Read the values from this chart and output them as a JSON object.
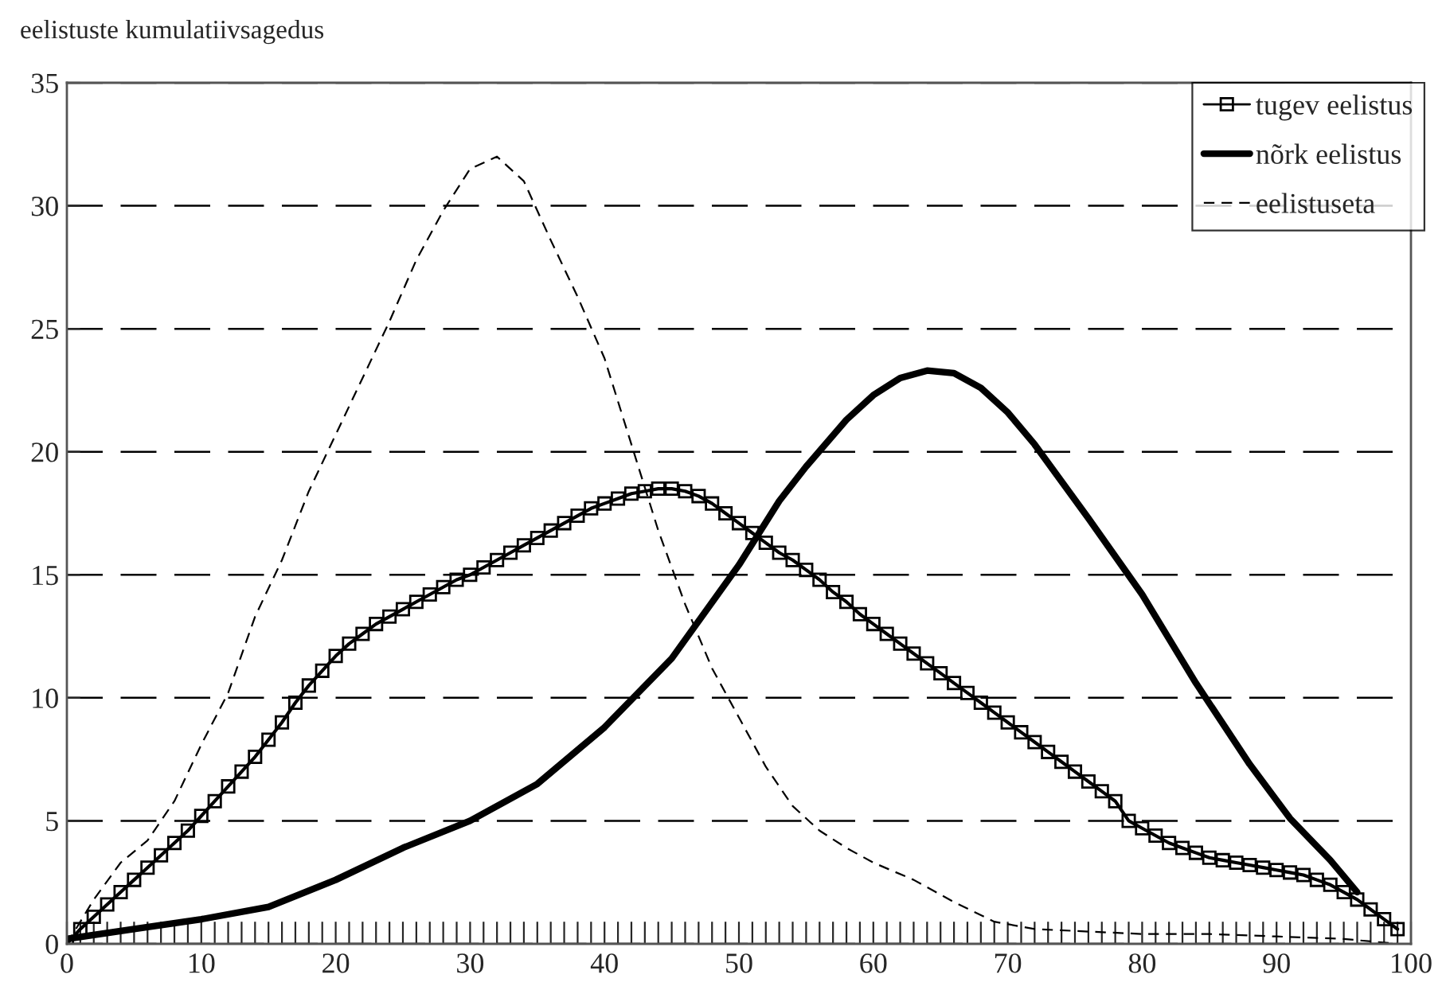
{
  "chart_data": {
    "type": "line",
    "ylabel": "eelistuste kumulatiivsagedus",
    "xlim": [
      0,
      100
    ],
    "ylim": [
      0,
      35
    ],
    "yticks": [
      0,
      5,
      10,
      15,
      20,
      25,
      30,
      35
    ],
    "xticks": [
      0,
      {
        "value": 1,
        "label": null
      },
      {
        "value": 2,
        "label": null
      },
      {
        "value": 3,
        "label": null
      },
      {
        "value": 4,
        "label": null
      },
      {
        "value": 5,
        "label": null
      },
      {
        "value": 6,
        "label": null
      },
      {
        "value": 7,
        "label": null
      },
      {
        "value": 8,
        "label": null
      },
      {
        "value": 9,
        "label": null
      },
      10,
      {
        "value": 11,
        "label": null
      },
      {
        "value": 12,
        "label": null
      },
      {
        "value": 13,
        "label": null
      },
      {
        "value": 14,
        "label": null
      },
      {
        "value": 15,
        "label": null
      },
      {
        "value": 16,
        "label": null
      },
      {
        "value": 17,
        "label": null
      },
      {
        "value": 18,
        "label": null
      },
      {
        "value": 19,
        "label": null
      },
      20,
      {
        "value": 21,
        "label": null
      },
      {
        "value": 22,
        "label": null
      },
      {
        "value": 23,
        "label": null
      },
      {
        "value": 24,
        "label": null
      },
      {
        "value": 25,
        "label": null
      },
      {
        "value": 26,
        "label": null
      },
      {
        "value": 27,
        "label": null
      },
      {
        "value": 28,
        "label": null
      },
      {
        "value": 29,
        "label": null
      },
      30,
      {
        "value": 31,
        "label": null
      },
      {
        "value": 32,
        "label": null
      },
      {
        "value": 33,
        "label": null
      },
      {
        "value": 34,
        "label": null
      },
      {
        "value": 35,
        "label": null
      },
      {
        "value": 36,
        "label": null
      },
      {
        "value": 37,
        "label": null
      },
      {
        "value": 38,
        "label": null
      },
      {
        "value": 39,
        "label": null
      },
      40,
      {
        "value": 41,
        "label": null
      },
      {
        "value": 42,
        "label": null
      },
      {
        "value": 43,
        "label": null
      },
      {
        "value": 44,
        "label": null
      },
      {
        "value": 45,
        "label": null
      },
      {
        "value": 46,
        "label": null
      },
      {
        "value": 47,
        "label": null
      },
      {
        "value": 48,
        "label": null
      },
      {
        "value": 49,
        "label": null
      },
      50,
      {
        "value": 51,
        "label": null
      },
      {
        "value": 52,
        "label": null
      },
      {
        "value": 53,
        "label": null
      },
      {
        "value": 54,
        "label": null
      },
      {
        "value": 55,
        "label": null
      },
      {
        "value": 56,
        "label": null
      },
      {
        "value": 57,
        "label": null
      },
      {
        "value": 58,
        "label": null
      },
      {
        "value": 59,
        "label": null
      },
      60,
      {
        "value": 61,
        "label": null
      },
      {
        "value": 62,
        "label": null
      },
      {
        "value": 63,
        "label": null
      },
      {
        "value": 64,
        "label": null
      },
      {
        "value": 65,
        "label": null
      },
      {
        "value": 66,
        "label": null
      },
      {
        "value": 67,
        "label": null
      },
      {
        "value": 68,
        "label": null
      },
      {
        "value": 69,
        "label": null
      },
      70,
      {
        "value": 71,
        "label": null
      },
      {
        "value": 72,
        "label": null
      },
      {
        "value": 73,
        "label": null
      },
      {
        "value": 74,
        "label": null
      },
      {
        "value": 75,
        "label": null
      },
      {
        "value": 76,
        "label": null
      },
      {
        "value": 77,
        "label": null
      },
      {
        "value": 78,
        "label": null
      },
      {
        "value": 79,
        "label": null
      },
      80,
      {
        "value": 81,
        "label": null
      },
      {
        "value": 82,
        "label": null
      },
      {
        "value": 83,
        "label": null
      },
      {
        "value": 84,
        "label": null
      },
      {
        "value": 85,
        "label": null
      },
      {
        "value": 86,
        "label": null
      },
      {
        "value": 87,
        "label": null
      },
      {
        "value": 88,
        "label": null
      },
      {
        "value": 89,
        "label": null
      },
      90,
      {
        "value": 91,
        "label": null
      },
      {
        "value": 92,
        "label": null
      },
      {
        "value": 93,
        "label": null
      },
      {
        "value": 94,
        "label": null
      },
      {
        "value": 95,
        "label": null
      },
      {
        "value": 96,
        "label": null
      },
      {
        "value": 97,
        "label": null
      },
      {
        "value": 98,
        "label": null
      },
      {
        "value": 99,
        "label": null
      },
      100
    ],
    "grid": "y",
    "legend": "top right",
    "series": [
      {
        "name": "tugev eelistus",
        "color": "#000000",
        "marker": "square",
        "line_style": "solid",
        "x": [
          0,
          1,
          2,
          3,
          4,
          5,
          6,
          7,
          8,
          9,
          10,
          11,
          12,
          13,
          14,
          15,
          16,
          17,
          18,
          19,
          20,
          21,
          22,
          23,
          24,
          25,
          26,
          27,
          28,
          29,
          30,
          31,
          32,
          33,
          34,
          35,
          36,
          37,
          38,
          39,
          40,
          41,
          42,
          43,
          44,
          45,
          46,
          47,
          48,
          49,
          50,
          51,
          52,
          53,
          54,
          55,
          56,
          57,
          58,
          59,
          60,
          61,
          62,
          63,
          64,
          65,
          66,
          67,
          68,
          69,
          70,
          71,
          72,
          73,
          74,
          75,
          76,
          77,
          78,
          79,
          80,
          81,
          82,
          83,
          84,
          85,
          86,
          87,
          88,
          89,
          90,
          91,
          92,
          93,
          94,
          95,
          96,
          97,
          98,
          99
        ],
        "values": [
          0,
          0.6,
          1.1,
          1.6,
          2.1,
          2.6,
          3.1,
          3.6,
          4.1,
          4.6,
          5.2,
          5.8,
          6.4,
          7.0,
          7.6,
          8.3,
          9.0,
          9.8,
          10.5,
          11.1,
          11.7,
          12.2,
          12.6,
          13.0,
          13.3,
          13.6,
          13.9,
          14.2,
          14.5,
          14.8,
          15.0,
          15.3,
          15.6,
          15.9,
          16.2,
          16.5,
          16.8,
          17.1,
          17.4,
          17.7,
          17.9,
          18.1,
          18.3,
          18.4,
          18.5,
          18.5,
          18.4,
          18.2,
          17.9,
          17.5,
          17.1,
          16.7,
          16.3,
          15.9,
          15.6,
          15.2,
          14.8,
          14.3,
          13.9,
          13.4,
          13.0,
          12.6,
          12.2,
          11.8,
          11.4,
          11.0,
          10.6,
          10.2,
          9.8,
          9.4,
          9.0,
          8.6,
          8.2,
          7.8,
          7.4,
          7.0,
          6.6,
          6.2,
          5.8,
          5.0,
          4.7,
          4.4,
          4.1,
          3.9,
          3.7,
          3.5,
          3.4,
          3.3,
          3.2,
          3.1,
          3.0,
          2.9,
          2.8,
          2.6,
          2.4,
          2.1,
          1.8,
          1.4,
          1.0,
          0.6
        ]
      },
      {
        "name": "nõrk eelistus",
        "color": "#000000",
        "marker": "none",
        "line_style": "solid",
        "x": [
          0,
          5,
          10,
          15,
          20,
          25,
          30,
          35,
          40,
          45,
          50,
          53,
          55,
          58,
          60,
          62,
          64,
          66,
          68,
          70,
          72,
          76,
          80,
          84,
          88,
          91,
          94,
          96
        ],
        "values": [
          0.2,
          0.6,
          1.0,
          1.5,
          2.6,
          3.9,
          5.0,
          6.5,
          8.8,
          11.6,
          15.4,
          18.0,
          19.4,
          21.3,
          22.3,
          23.0,
          23.3,
          23.2,
          22.6,
          21.6,
          20.3,
          17.3,
          14.2,
          10.6,
          7.3,
          5.1,
          3.4,
          2.1
        ]
      },
      {
        "name": "eelistuseta",
        "color": "#000000",
        "marker": "none",
        "line_style": "dashed",
        "x": [
          0,
          2,
          4,
          6,
          8,
          10,
          12,
          14,
          16,
          18,
          20,
          22,
          24,
          26,
          28,
          30,
          32,
          34,
          36,
          38,
          40,
          42,
          44,
          46,
          48,
          50,
          52,
          54,
          56,
          58,
          60,
          63,
          66,
          69,
          72,
          76,
          80,
          85,
          90,
          95,
          99
        ],
        "values": [
          0,
          1.8,
          3.3,
          4.2,
          5.8,
          8.1,
          10.2,
          13.3,
          15.6,
          18.4,
          20.7,
          23.0,
          25.3,
          27.8,
          29.8,
          31.5,
          32.0,
          31.0,
          28.6,
          26.3,
          23.8,
          20.3,
          16.8,
          13.8,
          11.2,
          9.2,
          7.2,
          5.6,
          4.6,
          3.9,
          3.3,
          2.6,
          1.7,
          0.9,
          0.6,
          0.5,
          0.4,
          0.4,
          0.3,
          0.2,
          0
        ]
      }
    ]
  }
}
